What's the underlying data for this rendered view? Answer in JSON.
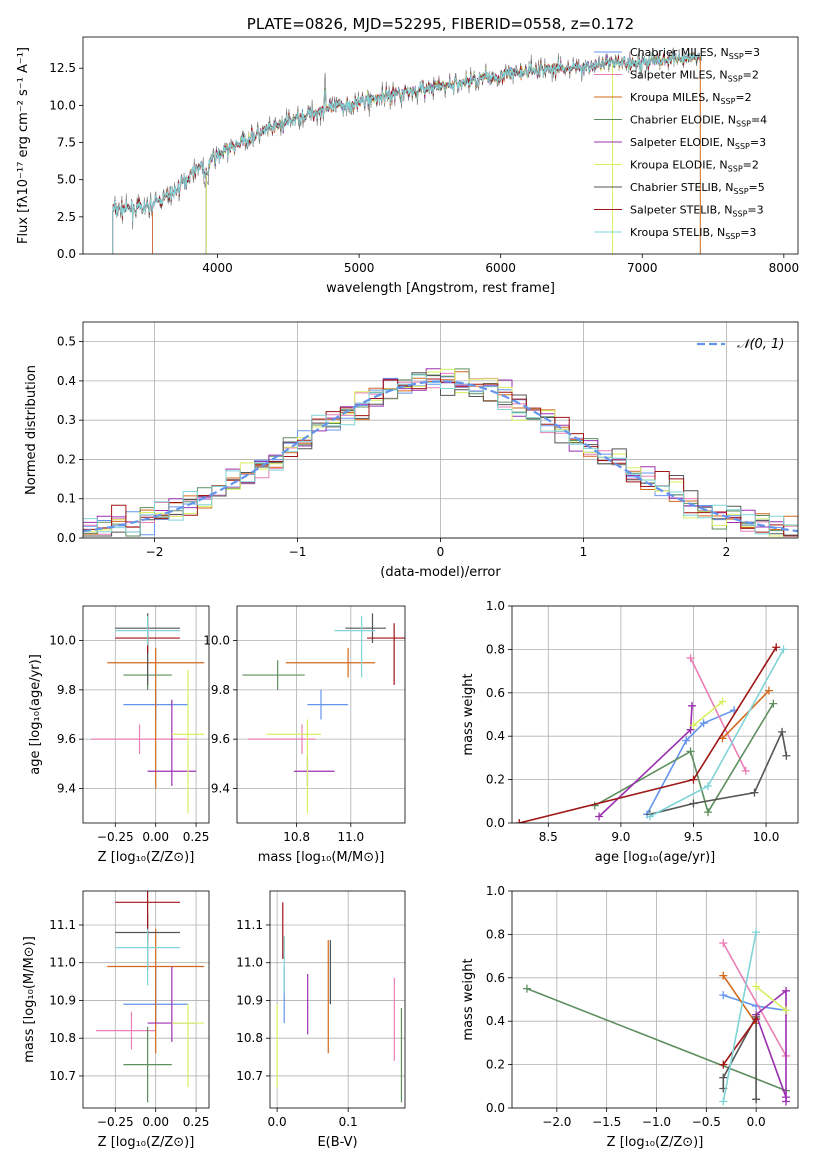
{
  "chart_data": [
    {
      "id": "spectrum",
      "type": "line",
      "title": "PLATE=0826, MJD=52295, FIBERID=0558, z=0.172",
      "xlabel": "wavelength [Angstrom, rest frame]",
      "ylabel": "Flux [fλ10⁻¹⁷ erg cm⁻² s⁻¹ A⁻¹]",
      "xlim": [
        3050,
        8100
      ],
      "ylim": [
        0,
        14.6
      ],
      "xticks": [
        4000,
        5000,
        6000,
        7000,
        8000
      ],
      "yticks": [
        0.0,
        2.5,
        5.0,
        7.5,
        10.0,
        12.5
      ],
      "grid": false,
      "legend_position": "right",
      "observed_color": "#808080",
      "continuum": {
        "x": [
          3260,
          3500,
          3700,
          3850,
          4000,
          4200,
          4400,
          4600,
          4800,
          5000,
          5200,
          5400,
          5600,
          5800,
          6000,
          6200,
          6400,
          6600,
          6800,
          7000,
          7200,
          7400
        ],
        "y": [
          3.0,
          3.1,
          4.2,
          5.8,
          6.6,
          7.7,
          8.5,
          9.3,
          9.8,
          10.2,
          10.7,
          11.0,
          11.3,
          11.7,
          12.0,
          12.3,
          12.5,
          12.6,
          12.8,
          12.9,
          13.1,
          13.3
        ]
      },
      "series": [
        {
          "name": "Chabrier MILES, N_SSP=3",
          "label_main": "Chabrier MILES, N",
          "label_sub": "SSP",
          "label_tail": "=3",
          "color": "#6495ed",
          "xmin": 3540
        },
        {
          "name": "Salpeter MILES, N_SSP=2",
          "label_main": "Salpeter MILES, N",
          "label_sub": "SSP",
          "label_tail": "=2",
          "color": "#ea7fb7",
          "xmin": 3540
        },
        {
          "name": "Kroupa MILES, N_SSP=2",
          "label_main": "Kroupa MILES, N",
          "label_sub": "SSP",
          "label_tail": "=2",
          "color": "#d2691e",
          "xmin": 3540
        },
        {
          "name": "Chabrier ELODIE, N_SSP=4",
          "label_main": "Chabrier ELODIE, N",
          "label_sub": "SSP",
          "label_tail": "=4",
          "color": "#5f8f5f",
          "xmin": 3920
        },
        {
          "name": "Salpeter ELODIE, N_SSP=3",
          "label_main": "Salpeter ELODIE, N",
          "label_sub": "SSP",
          "label_tail": "=3",
          "color": "#9b30b0",
          "xmin": 3920
        },
        {
          "name": "Kroupa ELODIE, N_SSP=2",
          "label_main": "Kroupa ELODIE, N",
          "label_sub": "SSP",
          "label_tail": "=2",
          "color": "#d7f060",
          "xmin": 3920
        },
        {
          "name": "Chabrier STELIB, N_SSP=5",
          "label_main": "Chabrier STELIB, N",
          "label_sub": "SSP",
          "label_tail": "=5",
          "color": "#555555",
          "xmin": 3260
        },
        {
          "name": "Salpeter STELIB, N_SSP=3",
          "label_main": "Salpeter STELIB, N",
          "label_sub": "SSP",
          "label_tail": "=3",
          "color": "#a01515",
          "xmin": 3260
        },
        {
          "name": "Kroupa STELIB, N_SSP=3",
          "label_main": "Kroupa STELIB, N",
          "label_sub": "SSP",
          "label_tail": "=3",
          "color": "#80d4d8",
          "xmin": 3260
        }
      ]
    },
    {
      "id": "residual_histogram",
      "type": "line",
      "xlabel": "(data-model)/error",
      "ylabel": "Normed distribution",
      "xlim": [
        -2.5,
        2.5
      ],
      "ylim": [
        0,
        0.55
      ],
      "xticks": [
        -2,
        -1,
        0,
        1,
        2
      ],
      "yticks": [
        0.0,
        0.1,
        0.2,
        0.3,
        0.4,
        0.5
      ],
      "grid": true,
      "legend_position": "top-right",
      "reference_curve": {
        "name": "N(0,1)",
        "label": "𝒩(0, 1)",
        "color": "#6495ed",
        "style": "dashed"
      },
      "bin_width": 0.1
    },
    {
      "id": "age_vs_Z",
      "type": "scatter",
      "xlabel": "Z [log₁₀(Z/Z⊙)]",
      "ylabel": "age  [log₁₀(age/yr)]",
      "xlim": [
        -0.45,
        0.33
      ],
      "ylim": [
        9.26,
        10.14
      ],
      "xticks": [
        -0.25,
        0.0,
        0.25
      ],
      "xticklabels": [
        "−0.25",
        "0.00",
        "0.25"
      ],
      "yticks": [
        9.4,
        9.6,
        9.8,
        10.0
      ],
      "grid": true,
      "points": [
        {
          "color": "#6495ed",
          "x": 0.0,
          "xerr": [
            0.2,
            0.2
          ],
          "y": 9.74,
          "yerr": [
            0.06,
            0.06
          ]
        },
        {
          "color": "#ea7fb7",
          "x": -0.1,
          "xerr": [
            0.3,
            0.3
          ],
          "y": 9.6,
          "yerr": [
            0.06,
            0.06
          ]
        },
        {
          "color": "#d2691e",
          "x": 0.0,
          "xerr": [
            0.3,
            0.3
          ],
          "y": 9.91,
          "yerr": [
            0.51,
            0.06
          ]
        },
        {
          "color": "#5f8f5f",
          "x": -0.05,
          "xerr": [
            0.15,
            0.15
          ],
          "y": 9.86,
          "yerr": [
            0.06,
            0.25
          ]
        },
        {
          "color": "#9b30b0",
          "x": 0.1,
          "xerr": [
            0.15,
            0.15
          ],
          "y": 9.47,
          "yerr": [
            0.06,
            0.29
          ]
        },
        {
          "color": "#d7f060",
          "x": 0.2,
          "xerr": [
            0.1,
            0.1
          ],
          "y": 9.62,
          "yerr": [
            0.32,
            0.26
          ]
        },
        {
          "color": "#555555",
          "x": -0.05,
          "xerr": [
            0.2,
            0.2
          ],
          "y": 10.05,
          "yerr": [
            0.23,
            0.06
          ]
        },
        {
          "color": "#a01515",
          "x": -0.05,
          "xerr": [
            0.2,
            0.2
          ],
          "y": 10.01,
          "yerr": [
            0.06,
            0.06
          ]
        },
        {
          "color": "#80d4d8",
          "x": -0.05,
          "xerr": [
            0.2,
            0.2
          ],
          "y": 10.04,
          "yerr": [
            0.06,
            0.06
          ]
        }
      ]
    },
    {
      "id": "age_vs_mass",
      "type": "scatter",
      "xlabel": "mass [log₁₀(M/M⊙)]",
      "xlim": [
        10.58,
        11.2
      ],
      "ylim": [
        9.26,
        10.14
      ],
      "xticks": [
        10.8,
        11.0
      ],
      "yticks": [
        9.4,
        9.6,
        9.8,
        10.0
      ],
      "grid": true,
      "points": [
        {
          "color": "#6495ed",
          "x": 10.89,
          "xerr": [
            0.05,
            0.1
          ],
          "y": 9.74,
          "yerr": [
            0.06,
            0.06
          ]
        },
        {
          "color": "#ea7fb7",
          "x": 10.82,
          "xerr": [
            0.2,
            0.05
          ],
          "y": 9.6,
          "yerr": [
            0.06,
            0.06
          ]
        },
        {
          "color": "#d2691e",
          "x": 10.99,
          "xerr": [
            0.23,
            0.1
          ],
          "y": 9.91,
          "yerr": [
            0.06,
            0.06
          ]
        },
        {
          "color": "#5f8f5f",
          "x": 10.73,
          "xerr": [
            0.13,
            0.1
          ],
          "y": 9.86,
          "yerr": [
            0.06,
            0.06
          ]
        },
        {
          "color": "#9b30b0",
          "x": 10.84,
          "xerr": [
            0.05,
            0.1
          ],
          "y": 9.47,
          "yerr": [
            0.06,
            0.06
          ]
        },
        {
          "color": "#d7f060",
          "x": 10.84,
          "xerr": [
            0.15,
            0.05
          ],
          "y": 9.62,
          "yerr": [
            0.32,
            0.06
          ]
        },
        {
          "color": "#555555",
          "x": 11.08,
          "xerr": [
            0.1,
            0.05
          ],
          "y": 10.05,
          "yerr": [
            0.06,
            0.06
          ]
        },
        {
          "color": "#a01515",
          "x": 11.16,
          "xerr": [
            0.1,
            0.05
          ],
          "y": 10.01,
          "yerr": [
            0.19,
            0.06
          ]
        },
        {
          "color": "#80d4d8",
          "x": 11.04,
          "xerr": [
            0.1,
            0.05
          ],
          "y": 10.04,
          "yerr": [
            0.19,
            0.06
          ]
        }
      ]
    },
    {
      "id": "massweight_vs_age",
      "type": "line",
      "xlabel": "age  [log₁₀(age/yr)]",
      "ylabel": "mass weight",
      "xlim": [
        8.25,
        10.22
      ],
      "ylim": [
        0,
        1.0
      ],
      "xticks": [
        8.5,
        9.0,
        9.5,
        10.0
      ],
      "yticks": [
        0.0,
        0.2,
        0.4,
        0.6,
        0.8,
        1.0
      ],
      "grid": true,
      "series": [
        {
          "color": "#6495ed",
          "x": [
            9.18,
            9.45,
            9.57,
            9.78
          ],
          "y": [
            0.04,
            0.38,
            0.46,
            0.52
          ]
        },
        {
          "color": "#ea7fb7",
          "x": [
            9.48,
            9.86
          ],
          "y": [
            0.76,
            0.24
          ]
        },
        {
          "color": "#d2691e",
          "x": [
            9.7,
            10.02
          ],
          "y": [
            0.39,
            0.61
          ]
        },
        {
          "color": "#5f8f5f",
          "x": [
            8.82,
            9.48,
            9.6,
            10.05
          ],
          "y": [
            0.08,
            0.33,
            0.05,
            0.55
          ]
        },
        {
          "color": "#9b30b0",
          "x": [
            8.85,
            9.48,
            9.49
          ],
          "y": [
            0.03,
            0.43,
            0.54
          ]
        },
        {
          "color": "#d7f060",
          "x": [
            9.5,
            9.7
          ],
          "y": [
            0.45,
            0.56
          ]
        },
        {
          "color": "#555555",
          "x": [
            9.2,
            9.5,
            9.92,
            10.11,
            10.14
          ],
          "y": [
            0.04,
            0.09,
            0.14,
            0.42,
            0.31
          ]
        },
        {
          "color": "#a01515",
          "x": [
            8.3,
            9.5,
            10.07
          ],
          "y": [
            0.0,
            0.2,
            0.81
          ]
        },
        {
          "color": "#80d4d8",
          "x": [
            9.2,
            9.6,
            10.12
          ],
          "y": [
            0.03,
            0.17,
            0.8
          ]
        }
      ]
    },
    {
      "id": "mass_vs_Z",
      "type": "scatter",
      "xlabel": "Z [log₁₀(Z/Z⊙)]",
      "ylabel": "mass [log₁₀(M/M⊙)]",
      "xlim": [
        -0.45,
        0.33
      ],
      "ylim": [
        10.615,
        11.19
      ],
      "xticks": [
        -0.25,
        0.0,
        0.25
      ],
      "xticklabels": [
        "−0.25",
        "0.00",
        "0.25"
      ],
      "yticks": [
        10.7,
        10.8,
        10.9,
        11.0,
        11.1
      ],
      "grid": true,
      "points": [
        {
          "color": "#6495ed",
          "x": 0.0,
          "xerr": [
            0.2,
            0.2
          ],
          "y": 10.89,
          "yerr": [
            0.05,
            0.1
          ]
        },
        {
          "color": "#ea7fb7",
          "x": -0.15,
          "xerr": [
            0.22,
            0.15
          ],
          "y": 10.82,
          "yerr": [
            0.05,
            0.05
          ]
        },
        {
          "color": "#d2691e",
          "x": 0.0,
          "xerr": [
            0.3,
            0.3
          ],
          "y": 10.99,
          "yerr": [
            0.23,
            0.1
          ]
        },
        {
          "color": "#5f8f5f",
          "x": -0.05,
          "xerr": [
            0.15,
            0.15
          ],
          "y": 10.73,
          "yerr": [
            0.1,
            0.1
          ]
        },
        {
          "color": "#9b30b0",
          "x": 0.1,
          "xerr": [
            0.15,
            0.15
          ],
          "y": 10.84,
          "yerr": [
            0.05,
            0.15
          ]
        },
        {
          "color": "#d7f060",
          "x": 0.2,
          "xerr": [
            0.1,
            0.1
          ],
          "y": 10.84,
          "yerr": [
            0.17,
            0.05
          ]
        },
        {
          "color": "#555555",
          "x": -0.05,
          "xerr": [
            0.2,
            0.2
          ],
          "y": 11.08,
          "yerr": [
            0.1,
            0.05
          ]
        },
        {
          "color": "#a01515",
          "x": -0.05,
          "xerr": [
            0.2,
            0.2
          ],
          "y": 11.16,
          "yerr": [
            0.1,
            0.05
          ]
        },
        {
          "color": "#80d4d8",
          "x": -0.05,
          "xerr": [
            0.2,
            0.2
          ],
          "y": 11.04,
          "yerr": [
            0.1,
            0.05
          ]
        }
      ]
    },
    {
      "id": "mass_vs_EBV",
      "type": "scatter",
      "xlabel": "E(B-V)",
      "xlim": [
        -0.01,
        0.18
      ],
      "ylim": [
        10.615,
        11.19
      ],
      "xticks": [
        0.0,
        0.1
      ],
      "yticks": [
        10.7,
        10.8,
        10.9,
        11.0,
        11.1
      ],
      "grid": true,
      "points": [
        {
          "color": "#6495ed",
          "x": 0.01,
          "y": 10.89,
          "yerr": [
            0.05,
            0.1
          ]
        },
        {
          "color": "#ea7fb7",
          "x": 0.165,
          "y": 10.82,
          "yerr": [
            0.08,
            0.14
          ]
        },
        {
          "color": "#d2691e",
          "x": 0.072,
          "y": 10.99,
          "yerr": [
            0.23,
            0.07
          ]
        },
        {
          "color": "#5f8f5f",
          "x": 0.175,
          "y": 10.73,
          "yerr": [
            0.1,
            0.15
          ]
        },
        {
          "color": "#9b30b0",
          "x": 0.043,
          "y": 10.84,
          "yerr": [
            0.03,
            0.13
          ]
        },
        {
          "color": "#d7f060",
          "x": 0.0,
          "y": 10.84,
          "yerr": [
            0.17,
            0.05
          ]
        },
        {
          "color": "#555555",
          "x": 0.075,
          "y": 10.96,
          "yerr": [
            0.07,
            0.1
          ]
        },
        {
          "color": "#a01515",
          "x": 0.008,
          "y": 11.08,
          "yerr": [
            0.07,
            0.08
          ]
        },
        {
          "color": "#80d4d8",
          "x": 0.01,
          "y": 11.04,
          "yerr": [
            0.12,
            0.03
          ]
        }
      ]
    },
    {
      "id": "massweight_vs_Z",
      "type": "line",
      "xlabel": "Z [log₁₀(Z/Z⊙)]",
      "ylabel": "mass weight",
      "xlim": [
        -2.45,
        0.42
      ],
      "ylim": [
        0,
        1.0
      ],
      "xticks": [
        -2.0,
        -1.5,
        -1.0,
        -0.5,
        0.0
      ],
      "xticklabels": [
        "−2.0",
        "−1.5",
        "−1.0",
        "−0.5",
        "0.0"
      ],
      "yticks": [
        0.0,
        0.2,
        0.4,
        0.6,
        0.8,
        1.0
      ],
      "grid": true,
      "series": [
        {
          "color": "#6495ed",
          "x": [
            -0.33,
            0.0,
            0.3
          ],
          "y": [
            0.52,
            0.47,
            0.45
          ]
        },
        {
          "color": "#ea7fb7",
          "x": [
            -0.33,
            0.3
          ],
          "y": [
            0.76,
            0.24
          ]
        },
        {
          "color": "#d2691e",
          "x": [
            -0.33,
            0.0
          ],
          "y": [
            0.61,
            0.39
          ]
        },
        {
          "color": "#5f8f5f",
          "x": [
            -2.3,
            0.3
          ],
          "y": [
            0.55,
            0.08
          ]
        },
        {
          "color": "#9b30b0",
          "x": [
            0.3,
            0.3,
            0.0,
            0.3
          ],
          "y": [
            0.03,
            0.54,
            0.43,
            0.05
          ]
        },
        {
          "color": "#d7f060",
          "x": [
            0.0,
            0.3
          ],
          "y": [
            0.56,
            0.45
          ]
        },
        {
          "color": "#555555",
          "x": [
            -0.33,
            -0.33,
            0.0,
            0.0
          ],
          "y": [
            0.09,
            0.14,
            0.42,
            0.04
          ]
        },
        {
          "color": "#a01515",
          "x": [
            -0.33,
            0.0
          ],
          "y": [
            0.2,
            0.41
          ]
        },
        {
          "color": "#80d4d8",
          "x": [
            -0.33,
            0.0
          ],
          "y": [
            0.03,
            0.81
          ]
        }
      ]
    }
  ]
}
